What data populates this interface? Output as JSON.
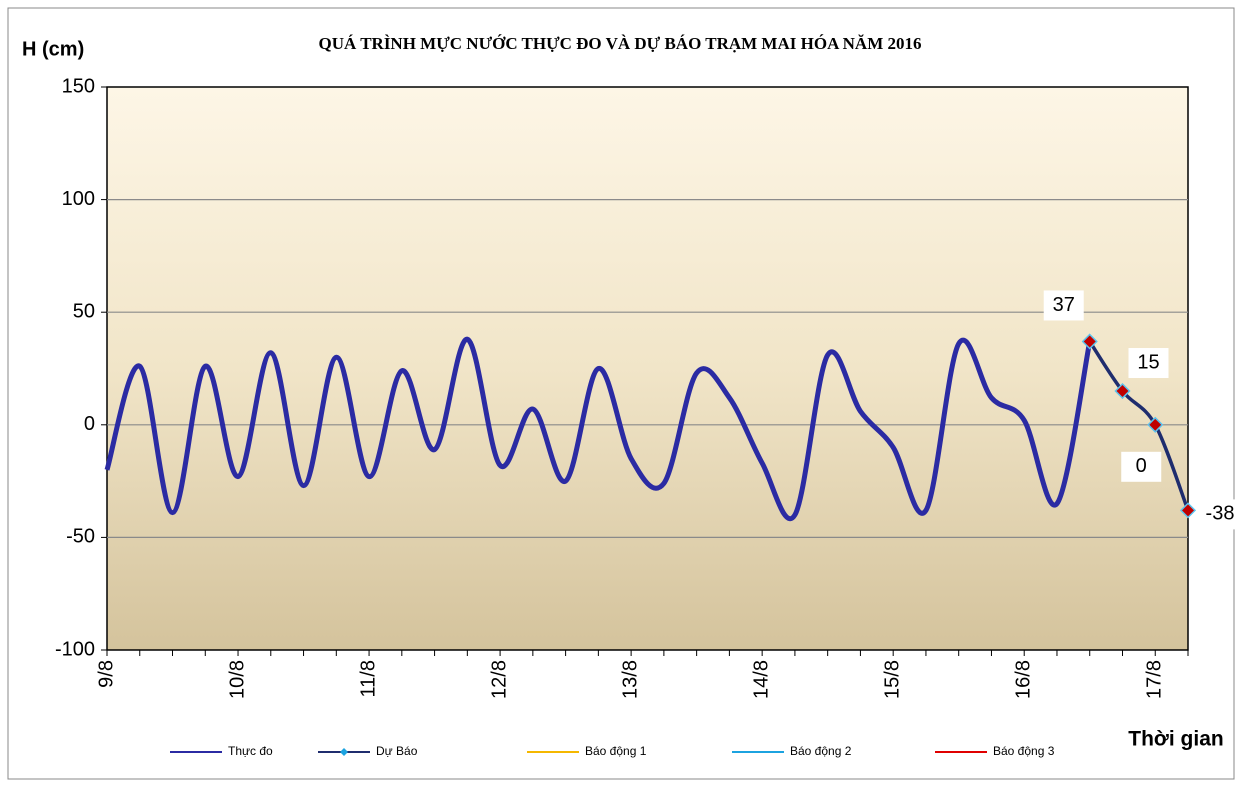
{
  "chart_data": {
    "type": "line",
    "title": "QUÁ TRÌNH MỰC NƯỚC THỰC ĐO VÀ DỰ BÁO TRẠM MAI HÓA  NĂM 2016",
    "y_label": "H (cm)",
    "x_label": "Thời gian",
    "categories": [
      "9/8",
      null,
      null,
      null,
      "10/8",
      null,
      null,
      null,
      "11/8",
      null,
      null,
      null,
      "12/8",
      null,
      null,
      null,
      "13/8",
      null,
      null,
      null,
      "14/8",
      null,
      null,
      null,
      "15/8",
      null,
      null,
      null,
      "16/8",
      null,
      null,
      null,
      "17/8",
      null
    ],
    "ylim": [
      -100,
      150
    ],
    "yticks": [
      -100,
      -50,
      0,
      50,
      100,
      150
    ],
    "grid": true,
    "series": [
      {
        "name": "Thực đo",
        "color": "#2b2ba3",
        "values": [
          -20,
          26,
          -39,
          26,
          -23,
          32,
          -27,
          30,
          -23,
          24,
          -11,
          38,
          -18,
          7,
          -25,
          25,
          -15,
          -26,
          23,
          12,
          -17,
          -40,
          31,
          6,
          -10,
          -38,
          36,
          12,
          2,
          -35,
          37,
          null,
          null,
          null
        ]
      },
      {
        "name": "Dự Báo",
        "color": "#1f2d6e",
        "marker": "diamond",
        "marker_color": "#c00000",
        "values": [
          null,
          null,
          null,
          null,
          null,
          null,
          null,
          null,
          null,
          null,
          null,
          null,
          null,
          null,
          null,
          null,
          null,
          null,
          null,
          null,
          null,
          null,
          null,
          null,
          null,
          null,
          null,
          null,
          null,
          null,
          37,
          15,
          0,
          -38
        ]
      },
      {
        "name": "Báo động 1",
        "color": "#f5b800",
        "values": [
          null,
          null,
          null,
          null,
          null,
          null,
          null,
          null,
          null,
          null,
          null,
          null,
          null,
          null,
          null,
          null,
          null,
          null,
          null,
          null,
          null,
          null,
          null,
          null,
          null,
          null,
          null,
          null,
          null,
          null,
          null,
          null,
          null,
          null
        ]
      },
      {
        "name": "Báo động 2",
        "color": "#1ca3e0",
        "values": [
          null,
          null,
          null,
          null,
          null,
          null,
          null,
          null,
          null,
          null,
          null,
          null,
          null,
          null,
          null,
          null,
          null,
          null,
          null,
          null,
          null,
          null,
          null,
          null,
          null,
          null,
          null,
          null,
          null,
          null,
          null,
          null,
          null,
          null
        ]
      },
      {
        "name": "Báo động 3",
        "color": "#e00000",
        "values": [
          null,
          null,
          null,
          null,
          null,
          null,
          null,
          null,
          null,
          null,
          null,
          null,
          null,
          null,
          null,
          null,
          null,
          null,
          null,
          null,
          null,
          null,
          null,
          null,
          null,
          null,
          null,
          null,
          null,
          null,
          null,
          null,
          null,
          null
        ]
      }
    ]
  }
}
